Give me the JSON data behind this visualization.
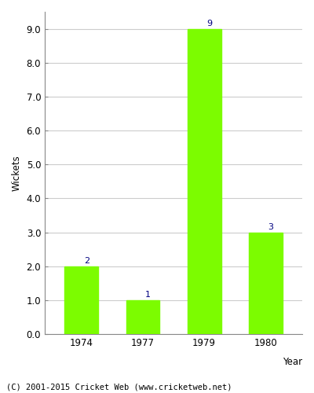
{
  "years": [
    "1974",
    "1977",
    "1979",
    "1980"
  ],
  "values": [
    2,
    1,
    9,
    3
  ],
  "bar_color": "#7cfc00",
  "bar_edge_color": "#7cfc00",
  "ylabel": "Wickets",
  "xlabel": "Year",
  "ylim": [
    0,
    9.5
  ],
  "yticks": [
    0.0,
    1.0,
    2.0,
    3.0,
    4.0,
    5.0,
    6.0,
    7.0,
    8.0,
    9.0
  ],
  "annotation_color": "#000080",
  "annotation_fontsize": 8,
  "footer": "(C) 2001-2015 Cricket Web (www.cricketweb.net)",
  "footer_fontsize": 7.5,
  "grid_color": "#cccccc",
  "background_color": "#ffffff",
  "axis_background": "#ffffff",
  "bar_width": 0.55,
  "tick_label_fontsize": 8.5,
  "xlabel_fontsize": 8.5,
  "ylabel_fontsize": 8.5
}
